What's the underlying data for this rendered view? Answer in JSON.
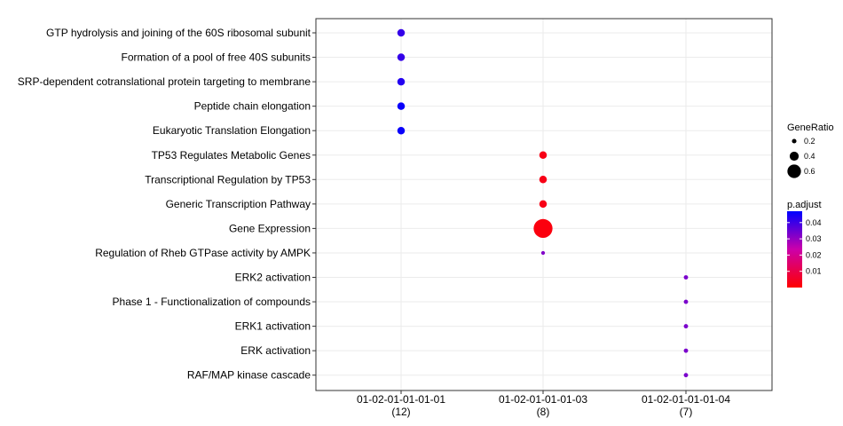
{
  "chart_data": {
    "type": "scatter",
    "title": "",
    "xlabel": "",
    "ylabel": "",
    "grid": true,
    "legend_position": "right",
    "categories_x": [
      {
        "name": "01-02-01-01-01-01",
        "count": "(12)"
      },
      {
        "name": "01-02-01-01-01-03",
        "count": "(8)"
      },
      {
        "name": "01-02-01-01-01-04",
        "count": "(7)"
      }
    ],
    "categories_y": [
      "GTP hydrolysis and joining of the 60S ribosomal subunit",
      "Formation of a pool of free 40S subunits",
      "SRP-dependent cotranslational protein targeting to membrane",
      "Peptide chain elongation",
      "Eukaryotic Translation Elongation",
      "TP53 Regulates Metabolic Genes",
      "Transcriptional Regulation by TP53",
      "Generic Transcription Pathway",
      "Gene Expression",
      "Regulation of Rheb GTPase activity by AMPK",
      "ERK2 activation",
      "Phase 1 - Functionalization of compounds",
      "ERK1 activation",
      "ERK activation",
      "RAF/MAP kinase cascade"
    ],
    "points": [
      {
        "x": "01-02-01-01-01-01",
        "y": "GTP hydrolysis and joining of the 60S ribosomal subunit",
        "gene_ratio": 0.25,
        "p_adjust": 0.041
      },
      {
        "x": "01-02-01-01-01-01",
        "y": "Formation of a pool of free 40S subunits",
        "gene_ratio": 0.25,
        "p_adjust": 0.041
      },
      {
        "x": "01-02-01-01-01-01",
        "y": "SRP-dependent cotranslational protein targeting to membrane",
        "gene_ratio": 0.25,
        "p_adjust": 0.043
      },
      {
        "x": "01-02-01-01-01-01",
        "y": "Peptide chain elongation",
        "gene_ratio": 0.25,
        "p_adjust": 0.046
      },
      {
        "x": "01-02-01-01-01-01",
        "y": "Eukaryotic Translation Elongation",
        "gene_ratio": 0.25,
        "p_adjust": 0.046
      },
      {
        "x": "01-02-01-01-01-03",
        "y": "TP53 Regulates Metabolic Genes",
        "gene_ratio": 0.25,
        "p_adjust": 0.003
      },
      {
        "x": "01-02-01-01-01-03",
        "y": "Transcriptional Regulation by TP53",
        "gene_ratio": 0.25,
        "p_adjust": 0.003
      },
      {
        "x": "01-02-01-01-01-03",
        "y": "Generic Transcription Pathway",
        "gene_ratio": 0.25,
        "p_adjust": 0.003
      },
      {
        "x": "01-02-01-01-01-03",
        "y": "Gene Expression",
        "gene_ratio": 0.625,
        "p_adjust": 0.002
      },
      {
        "x": "01-02-01-01-01-03",
        "y": "Regulation of Rheb GTPase activity by AMPK",
        "gene_ratio": 0.125,
        "p_adjust": 0.032
      },
      {
        "x": "01-02-01-01-01-04",
        "y": "ERK2 activation",
        "gene_ratio": 0.143,
        "p_adjust": 0.033
      },
      {
        "x": "01-02-01-01-01-04",
        "y": "Phase 1 - Functionalization of compounds",
        "gene_ratio": 0.143,
        "p_adjust": 0.033
      },
      {
        "x": "01-02-01-01-01-04",
        "y": "ERK1 activation",
        "gene_ratio": 0.143,
        "p_adjust": 0.033
      },
      {
        "x": "01-02-01-01-01-04",
        "y": "ERK activation",
        "gene_ratio": 0.143,
        "p_adjust": 0.033
      },
      {
        "x": "01-02-01-01-01-04",
        "y": "RAF/MAP kinase cascade",
        "gene_ratio": 0.143,
        "p_adjust": 0.033
      }
    ],
    "size_legend": {
      "title": "GeneRatio",
      "entries": [
        {
          "label": "0.2",
          "value": 0.2
        },
        {
          "label": "0.4",
          "value": 0.4
        },
        {
          "label": "0.6",
          "value": 0.6
        }
      ]
    },
    "color_legend": {
      "title": "p.adjust",
      "range": [
        0.0,
        0.047
      ],
      "ticks": [
        {
          "label": "0.04",
          "value": 0.04
        },
        {
          "label": "0.03",
          "value": 0.03
        },
        {
          "label": "0.02",
          "value": 0.02
        },
        {
          "label": "0.01",
          "value": 0.01
        }
      ],
      "low_color": "#ff0000",
      "high_color": "#0000ff"
    },
    "colors": {
      "panel_border": "#333333",
      "grid": "#ebebeb"
    }
  }
}
